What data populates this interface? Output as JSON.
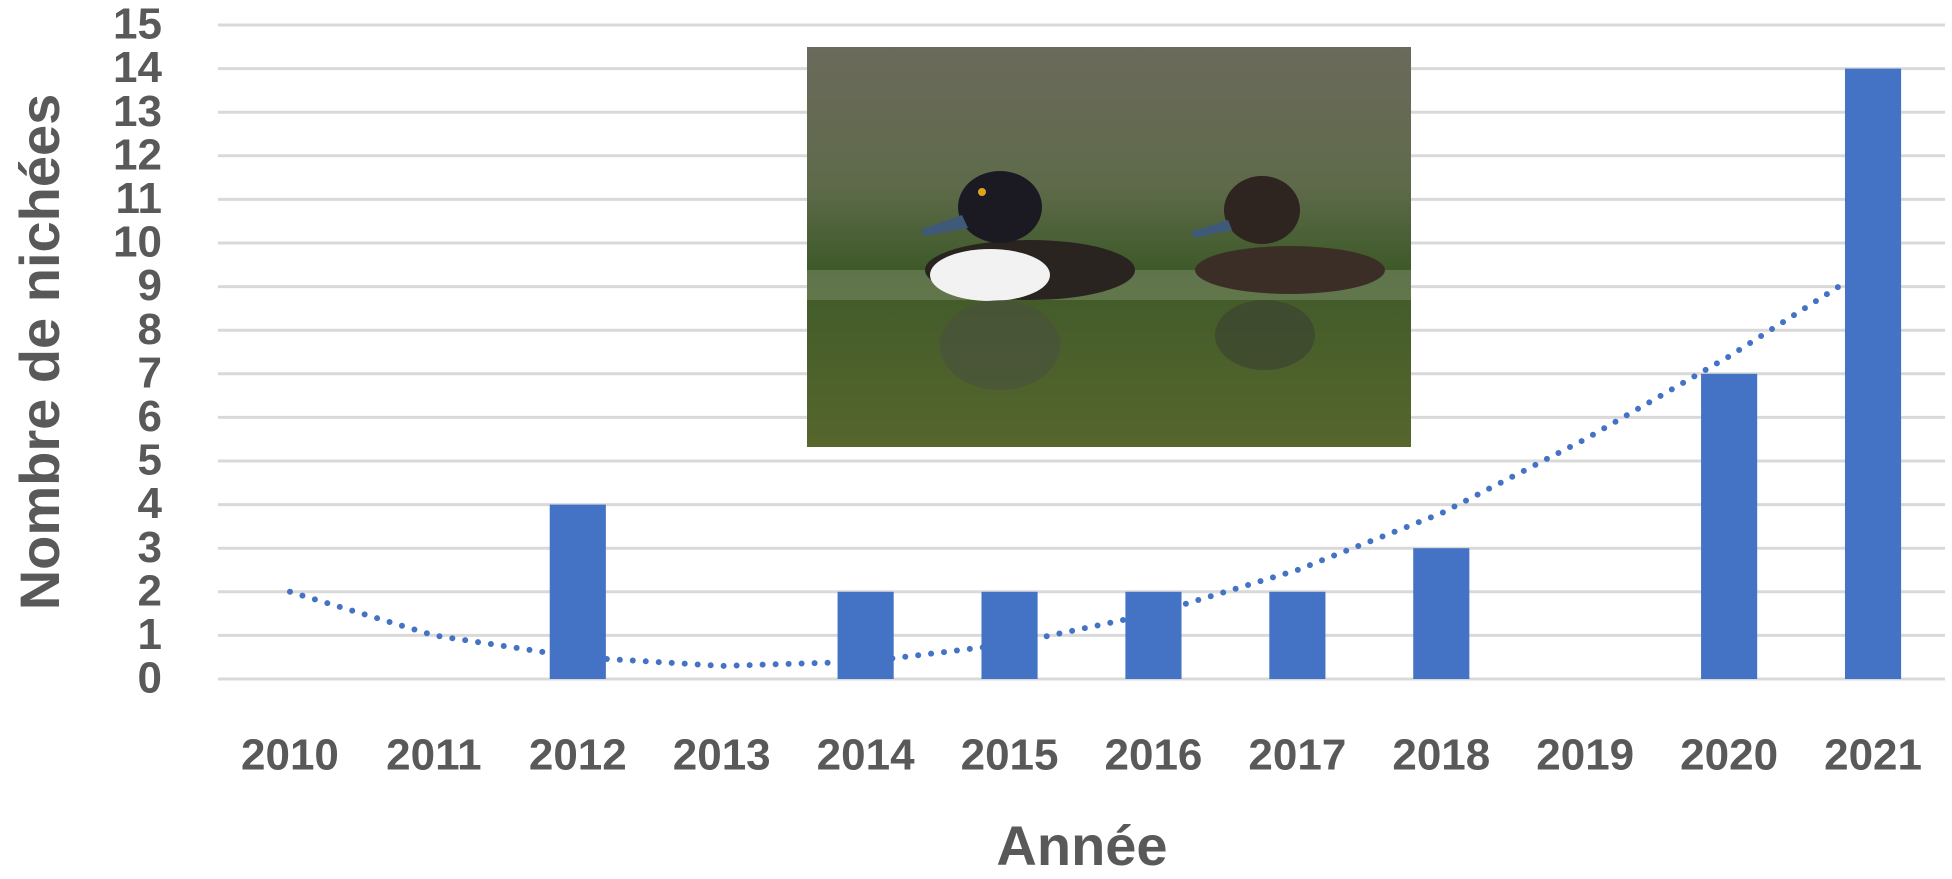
{
  "chart_data": {
    "type": "bar",
    "x_label": "Année",
    "y_label": "Nombre de nichées",
    "categories": [
      "2010",
      "2011",
      "2012",
      "2013",
      "2014",
      "2015",
      "2016",
      "2017",
      "2018",
      "2019",
      "2020",
      "2021"
    ],
    "values": [
      0,
      0,
      4,
      0,
      2,
      2,
      2,
      2,
      3,
      0,
      7,
      14
    ],
    "color": "#4472c4",
    "trendline": {
      "values": [
        2.0,
        1.0,
        0.5,
        0.3,
        0.4,
        0.8,
        1.5,
        2.5,
        3.8,
        5.5,
        7.4,
        9.5
      ],
      "color": "#4472c4",
      "style": "dotted"
    },
    "ylim": [
      0,
      15
    ],
    "yticks": [
      0,
      1,
      2,
      3,
      4,
      5,
      6,
      7,
      8,
      9,
      10,
      11,
      12,
      13,
      14,
      15
    ],
    "grid": true
  }
}
